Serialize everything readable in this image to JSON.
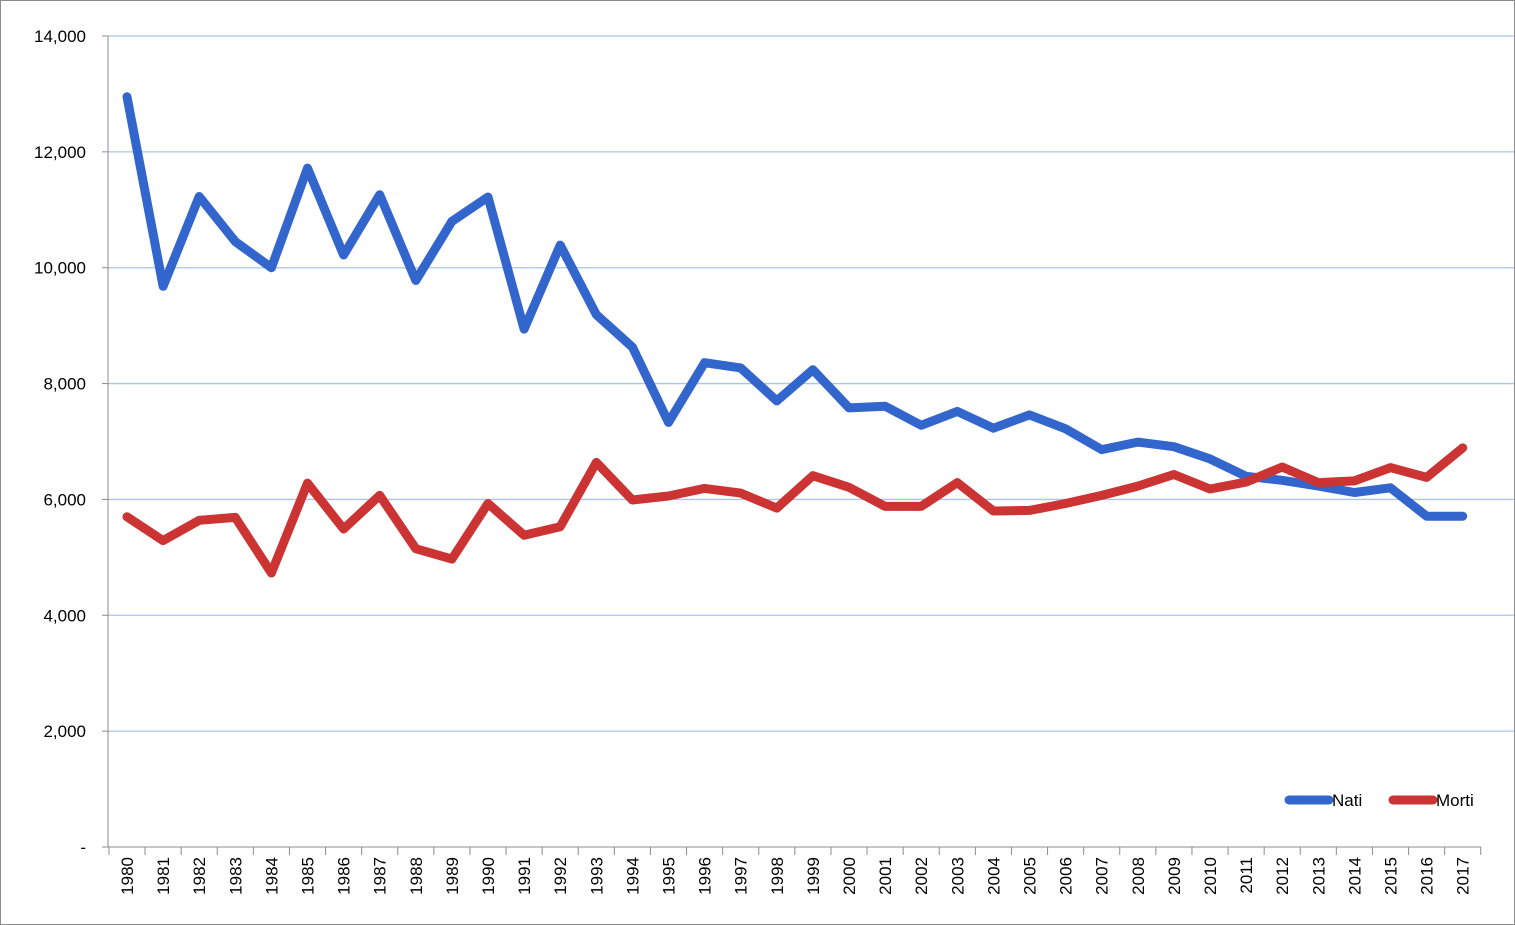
{
  "chart_data": {
    "type": "line",
    "title": "",
    "xlabel": "",
    "ylabel": "",
    "x": [
      "1980",
      "1981",
      "1982",
      "1983",
      "1984",
      "1985",
      "1986",
      "1987",
      "1988",
      "1989",
      "1990",
      "1991",
      "1992",
      "1993",
      "1994",
      "1995",
      "1996",
      "1997",
      "1998",
      "1999",
      "2000",
      "2001",
      "2002",
      "2003",
      "2004",
      "2005",
      "2006",
      "2007",
      "2008",
      "2009",
      "2010",
      "2011",
      "2012",
      "2013",
      "2014",
      "2015",
      "2016",
      "2017"
    ],
    "ylim": [
      0,
      14000
    ],
    "yticks": [
      0,
      2000,
      4000,
      6000,
      8000,
      10000,
      12000,
      14000
    ],
    "ytick_labels": [
      "-",
      "2,000",
      "4,000",
      "6,000",
      "8,000",
      "10,000",
      "12,000",
      "14,000"
    ],
    "grid": "horizontal",
    "legend_position": "bottom-right",
    "series": [
      {
        "name": "Nati",
        "color": "#3366cc",
        "values": [
          12950,
          9680,
          11230,
          10450,
          10000,
          11720,
          10220,
          11260,
          9780,
          10800,
          11220,
          8940,
          10390,
          9190,
          8630,
          7330,
          8360,
          8270,
          7700,
          8240,
          7580,
          7610,
          7280,
          7520,
          7230,
          7460,
          7220,
          6860,
          6990,
          6910,
          6700,
          6400,
          6330,
          6230,
          6120,
          6200,
          5710,
          5710
        ]
      },
      {
        "name": "Morti",
        "color": "#cc3333",
        "values": [
          5700,
          5290,
          5640,
          5690,
          4730,
          6280,
          5490,
          6070,
          5150,
          4970,
          5930,
          5380,
          5530,
          6640,
          5990,
          6060,
          6190,
          6110,
          5850,
          6410,
          6210,
          5880,
          5880,
          6290,
          5800,
          5810,
          5930,
          6070,
          6230,
          6430,
          6180,
          6300,
          6560,
          6290,
          6320,
          6550,
          6380,
          6890
        ]
      }
    ]
  }
}
